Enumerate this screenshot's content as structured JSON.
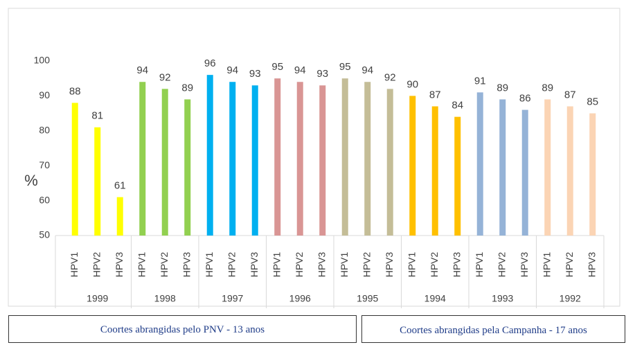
{
  "chart_data": {
    "type": "bar",
    "ylabel": "%",
    "subcategories": [
      "HPV1",
      "HPV2",
      "HPV3"
    ],
    "groups": [
      {
        "name": "1999",
        "color": "#ffff00",
        "values": [
          88,
          81,
          61
        ]
      },
      {
        "name": "1998",
        "color": "#92d050",
        "values": [
          94,
          92,
          89
        ]
      },
      {
        "name": "1997",
        "color": "#00b0f0",
        "values": [
          96,
          94,
          93
        ]
      },
      {
        "name": "1996",
        "color": "#d99594",
        "values": [
          95,
          94,
          93
        ]
      },
      {
        "name": "1995",
        "color": "#c4bd97",
        "values": [
          95,
          94,
          92
        ]
      },
      {
        "name": "1994",
        "color": "#ffc000",
        "values": [
          90,
          87,
          84
        ]
      },
      {
        "name": "1993",
        "color": "#95b3d7",
        "values": [
          91,
          89,
          86
        ]
      },
      {
        "name": "1992",
        "color": "#fbd4b4",
        "values": [
          89,
          87,
          85
        ]
      }
    ],
    "ylim": [
      50,
      100
    ],
    "yticks": [
      50,
      60,
      70,
      80,
      90,
      100
    ],
    "annotations": [
      "Coortes abrangidas pelo PNV - 13 anos",
      "Coortes abrangidas pela Campanha - 17 anos"
    ]
  }
}
